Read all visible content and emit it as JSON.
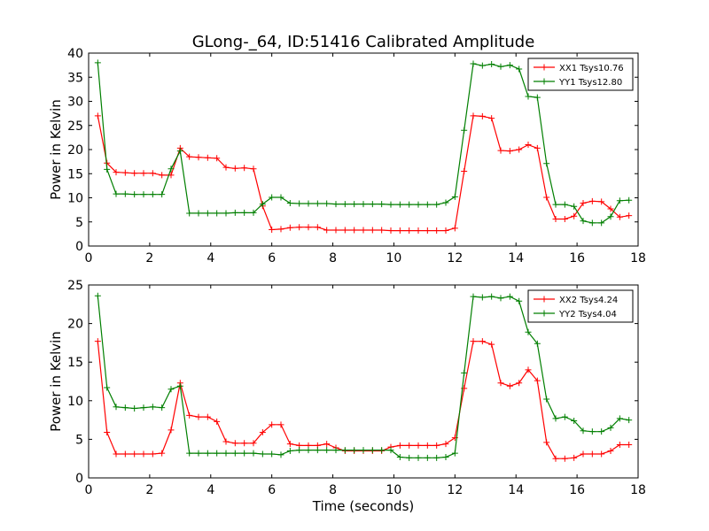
{
  "title": "GLong-_64, ID:51416 Calibrated Amplitude",
  "colors": {
    "xx": "#ff0000",
    "yy": "#007f00"
  },
  "chart_data": [
    {
      "type": "line",
      "xlabel": "",
      "ylabel": "Power in Kelvin",
      "xlim": [
        0,
        18
      ],
      "ylim": [
        0,
        40
      ],
      "xticks": [
        0,
        2,
        4,
        6,
        8,
        10,
        12,
        14,
        16,
        18
      ],
      "yticks": [
        0,
        5,
        10,
        15,
        20,
        25,
        30,
        35,
        40
      ],
      "legend": "top-right",
      "x": [
        0.3,
        0.6,
        0.9,
        1.2,
        1.5,
        1.8,
        2.1,
        2.4,
        2.7,
        3.0,
        3.3,
        3.6,
        3.9,
        4.2,
        4.5,
        4.8,
        5.1,
        5.4,
        5.7,
        6.0,
        6.3,
        6.6,
        6.9,
        7.2,
        7.5,
        7.8,
        8.1,
        8.4,
        8.7,
        9.0,
        9.3,
        9.6,
        9.9,
        10.2,
        10.5,
        10.8,
        11.1,
        11.4,
        11.7,
        12.0,
        12.3,
        12.6,
        12.9,
        13.2,
        13.5,
        13.8,
        14.1,
        14.4,
        14.7,
        15.0,
        15.3,
        15.6,
        15.9,
        16.2,
        16.5,
        16.8,
        17.1,
        17.4,
        17.7
      ],
      "series": [
        {
          "name": "XX1 Tsys10.76",
          "values": [
            27,
            17.2,
            15.3,
            15.2,
            15.1,
            15.1,
            15.1,
            14.7,
            14.7,
            20.3,
            18.5,
            18.4,
            18.3,
            18.2,
            16.3,
            16.1,
            16.2,
            16,
            8.3,
            3.4,
            3.5,
            3.8,
            3.9,
            3.9,
            3.9,
            3.3,
            3.3,
            3.3,
            3.3,
            3.3,
            3.3,
            3.3,
            3.2,
            3.2,
            3.2,
            3.2,
            3.2,
            3.2,
            3.2,
            3.7,
            15.5,
            27,
            26.9,
            26.5,
            19.8,
            19.7,
            20,
            21,
            20.3,
            10.1,
            5.6,
            5.6,
            6.2,
            8.9,
            9.3,
            9.2,
            7.7,
            6,
            6.3
          ]
        },
        {
          "name": "YY1 Tsys12.80",
          "values": [
            38,
            15.9,
            10.8,
            10.8,
            10.7,
            10.7,
            10.7,
            10.7,
            16,
            19.7,
            6.8,
            6.8,
            6.8,
            6.8,
            6.8,
            6.9,
            6.9,
            6.9,
            8.7,
            10.1,
            10.1,
            8.9,
            8.8,
            8.8,
            8.8,
            8.8,
            8.7,
            8.7,
            8.7,
            8.7,
            8.7,
            8.7,
            8.6,
            8.6,
            8.6,
            8.6,
            8.6,
            8.6,
            9,
            10.2,
            24,
            37.8,
            37.4,
            37.7,
            37.2,
            37.5,
            36.7,
            31,
            30.8,
            17.1,
            8.6,
            8.6,
            8.2,
            5.2,
            4.8,
            4.8,
            6.1,
            9.4,
            9.5
          ]
        }
      ]
    },
    {
      "type": "line",
      "xlabel": "Time (seconds)",
      "ylabel": "Power in Kelvin",
      "xlim": [
        0,
        18
      ],
      "ylim": [
        0,
        25
      ],
      "xticks": [
        0,
        2,
        4,
        6,
        8,
        10,
        12,
        14,
        16,
        18
      ],
      "yticks": [
        0,
        5,
        10,
        15,
        20,
        25
      ],
      "legend": "top-right",
      "x": [
        0.3,
        0.6,
        0.9,
        1.2,
        1.5,
        1.8,
        2.1,
        2.4,
        2.7,
        3.0,
        3.3,
        3.6,
        3.9,
        4.2,
        4.5,
        4.8,
        5.1,
        5.4,
        5.7,
        6.0,
        6.3,
        6.6,
        6.9,
        7.2,
        7.5,
        7.8,
        8.1,
        8.4,
        8.7,
        9.0,
        9.3,
        9.6,
        9.9,
        10.2,
        10.5,
        10.8,
        11.1,
        11.4,
        11.7,
        12.0,
        12.3,
        12.6,
        12.9,
        13.2,
        13.5,
        13.8,
        14.1,
        14.4,
        14.7,
        15.0,
        15.3,
        15.6,
        15.9,
        16.2,
        16.5,
        16.8,
        17.1,
        17.4,
        17.7
      ],
      "series": [
        {
          "name": "XX2 Tsys4.24",
          "values": [
            17.7,
            5.9,
            3.1,
            3.1,
            3.1,
            3.1,
            3.1,
            3.2,
            6.2,
            12.3,
            8.1,
            7.9,
            7.9,
            7.3,
            4.7,
            4.5,
            4.5,
            4.5,
            5.9,
            6.9,
            6.9,
            4.4,
            4.2,
            4.2,
            4.2,
            4.4,
            3.9,
            3.5,
            3.5,
            3.5,
            3.5,
            3.5,
            4,
            4.2,
            4.2,
            4.2,
            4.2,
            4.2,
            4.4,
            5.2,
            11.6,
            17.7,
            17.7,
            17.3,
            12.3,
            11.9,
            12.3,
            14,
            12.6,
            4.6,
            2.5,
            2.5,
            2.6,
            3.1,
            3.1,
            3.1,
            3.5,
            4.3,
            4.3
          ]
        },
        {
          "name": "YY2 Tsys4.04",
          "values": [
            23.6,
            11.7,
            9.2,
            9.1,
            9.0,
            9.1,
            9.2,
            9.1,
            11.5,
            11.9,
            3.2,
            3.2,
            3.2,
            3.2,
            3.2,
            3.2,
            3.2,
            3.2,
            3.1,
            3.1,
            3.0,
            3.5,
            3.6,
            3.6,
            3.6,
            3.6,
            3.6,
            3.6,
            3.6,
            3.6,
            3.6,
            3.6,
            3.6,
            2.7,
            2.6,
            2.6,
            2.6,
            2.6,
            2.7,
            3.2,
            13.6,
            23.5,
            23.4,
            23.5,
            23.3,
            23.5,
            22.9,
            18.9,
            17.4,
            10.2,
            7.7,
            7.9,
            7.4,
            6.1,
            6,
            6,
            6.5,
            7.7,
            7.5
          ]
        }
      ]
    }
  ]
}
